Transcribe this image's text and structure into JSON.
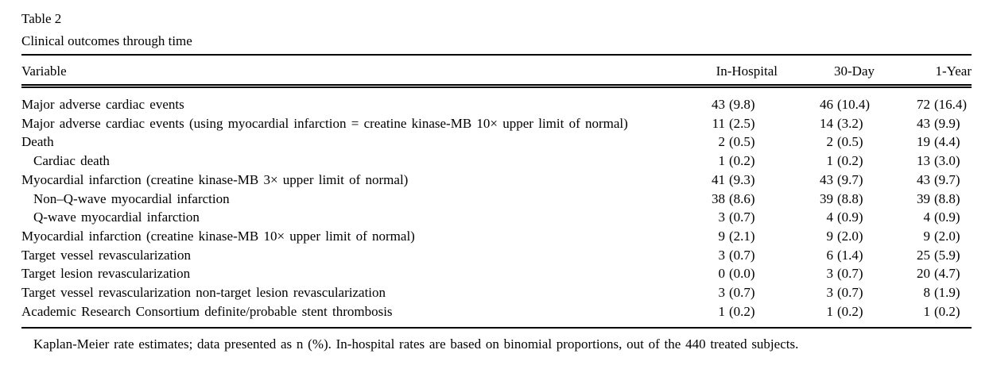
{
  "page": {
    "background": "#ffffff",
    "text_color": "#000000"
  },
  "header": {
    "label": "Table 2",
    "caption": "Clinical outcomes through time"
  },
  "columns": {
    "variable": "Variable",
    "in_hospital": "In-Hospital",
    "day_30": "30-Day",
    "year_1": "1-Year"
  },
  "rows": [
    {
      "variable": "Major adverse cardiac events",
      "indent": false,
      "in_hospital": {
        "n": "43",
        "pct": "(9.8)"
      },
      "day_30": {
        "n": "46",
        "pct": "(10.4)"
      },
      "year_1": {
        "n": "72",
        "pct": "(16.4)"
      }
    },
    {
      "variable": "Major adverse cardiac events (using myocardial infarction = creatine kinase-MB 10× upper limit of normal)",
      "indent": false,
      "in_hospital": {
        "n": "11",
        "pct": "(2.5)"
      },
      "day_30": {
        "n": "14",
        "pct": "(3.2)"
      },
      "year_1": {
        "n": "43",
        "pct": "(9.9)"
      }
    },
    {
      "variable": "Death",
      "indent": false,
      "in_hospital": {
        "n": "2",
        "pct": "(0.5)"
      },
      "day_30": {
        "n": "2",
        "pct": "(0.5)"
      },
      "year_1": {
        "n": "19",
        "pct": "(4.4)"
      }
    },
    {
      "variable": "Cardiac death",
      "indent": true,
      "in_hospital": {
        "n": "1",
        "pct": "(0.2)"
      },
      "day_30": {
        "n": "1",
        "pct": "(0.2)"
      },
      "year_1": {
        "n": "13",
        "pct": "(3.0)"
      }
    },
    {
      "variable": "Myocardial infarction (creatine kinase-MB 3× upper limit of normal)",
      "indent": false,
      "in_hospital": {
        "n": "41",
        "pct": "(9.3)"
      },
      "day_30": {
        "n": "43",
        "pct": "(9.7)"
      },
      "year_1": {
        "n": "43",
        "pct": "(9.7)"
      }
    },
    {
      "variable": "Non–Q-wave myocardial infarction",
      "indent": true,
      "in_hospital": {
        "n": "38",
        "pct": "(8.6)"
      },
      "day_30": {
        "n": "39",
        "pct": "(8.8)"
      },
      "year_1": {
        "n": "39",
        "pct": "(8.8)"
      }
    },
    {
      "variable": "Q-wave myocardial infarction",
      "indent": true,
      "in_hospital": {
        "n": "3",
        "pct": "(0.7)"
      },
      "day_30": {
        "n": "4",
        "pct": "(0.9)"
      },
      "year_1": {
        "n": "4",
        "pct": "(0.9)"
      }
    },
    {
      "variable": "Myocardial infarction (creatine kinase-MB 10× upper limit of normal)",
      "indent": false,
      "in_hospital": {
        "n": "9",
        "pct": "(2.1)"
      },
      "day_30": {
        "n": "9",
        "pct": "(2.0)"
      },
      "year_1": {
        "n": "9",
        "pct": "(2.0)"
      }
    },
    {
      "variable": "Target vessel revascularization",
      "indent": false,
      "in_hospital": {
        "n": "3",
        "pct": "(0.7)"
      },
      "day_30": {
        "n": "6",
        "pct": "(1.4)"
      },
      "year_1": {
        "n": "25",
        "pct": "(5.9)"
      }
    },
    {
      "variable": "Target lesion revascularization",
      "indent": false,
      "in_hospital": {
        "n": "0",
        "pct": "(0.0)"
      },
      "day_30": {
        "n": "3",
        "pct": "(0.7)"
      },
      "year_1": {
        "n": "20",
        "pct": "(4.7)"
      }
    },
    {
      "variable": "Target vessel revascularization non-target lesion revascularization",
      "indent": false,
      "in_hospital": {
        "n": "3",
        "pct": "(0.7)"
      },
      "day_30": {
        "n": "3",
        "pct": "(0.7)"
      },
      "year_1": {
        "n": "8",
        "pct": "(1.9)"
      }
    },
    {
      "variable": "Academic Research Consortium definite/probable stent thrombosis",
      "indent": false,
      "in_hospital": {
        "n": "1",
        "pct": "(0.2)"
      },
      "day_30": {
        "n": "1",
        "pct": "(0.2)"
      },
      "year_1": {
        "n": "1",
        "pct": "(0.2)"
      }
    }
  ],
  "footnote": "Kaplan-Meier rate estimates; data presented as n (%). In-hospital rates are based on binomial proportions, out of the 440 treated subjects."
}
